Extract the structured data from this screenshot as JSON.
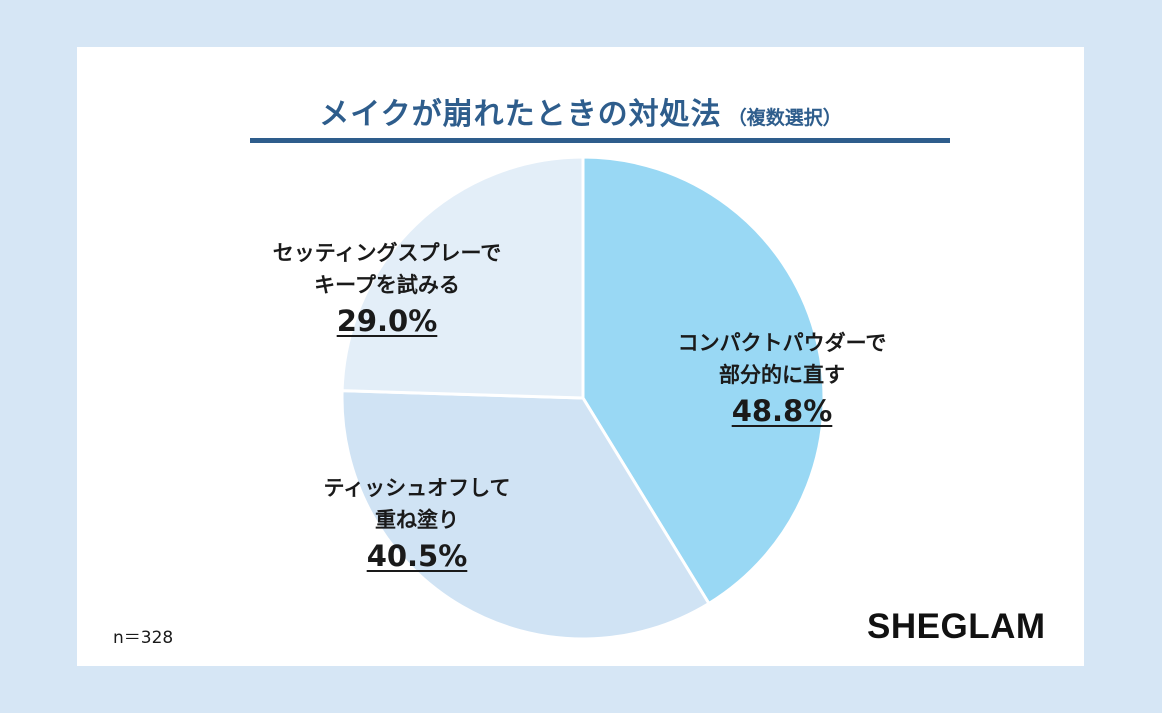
{
  "title": "メイクが崩れたときの対処法",
  "subtitle": "（複数選択）",
  "footnote": "n＝328",
  "brand": "SHEGLAM",
  "chart_data": {
    "type": "pie",
    "title": "メイクが崩れたときの対処法（複数選択）",
    "slices": [
      {
        "name_lines": [
          "コンパクトパウダーで",
          "部分的に直す"
        ],
        "value": 48.8,
        "value_label": "48.8%",
        "color": "#99d8f4"
      },
      {
        "name_lines": [
          "ティッシュオフして",
          "重ね塗り"
        ],
        "value": 40.5,
        "value_label": "40.5%",
        "color": "#d0e3f4"
      },
      {
        "name_lines": [
          "セッティングスプレーで",
          "キープを試みる"
        ],
        "value": 29.0,
        "value_label": "29.0%",
        "color": "#e3eef8"
      }
    ],
    "start": "12 o'clock",
    "direction": "clockwise",
    "sample_size": "n＝328"
  }
}
